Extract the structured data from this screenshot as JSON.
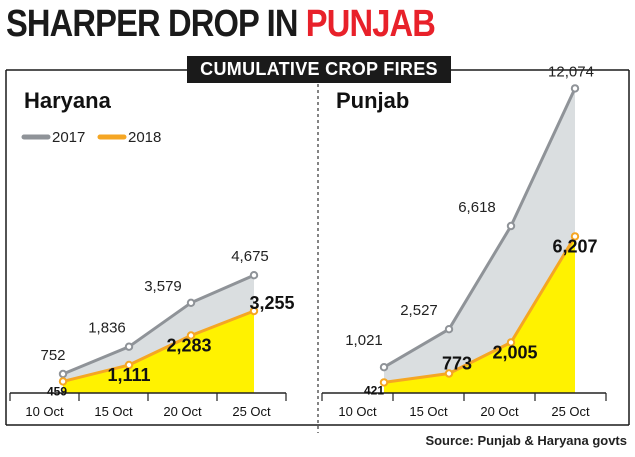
{
  "headline": {
    "prefix": "SHARPER DROP IN ",
    "highlight": "PUNJAB"
  },
  "subtitle": "CUMULATIVE CROP FIRES",
  "source": "Source: Punjab & Haryana govts",
  "colors": {
    "series_2017": "#8f9398",
    "series_2018": "#f5a623",
    "fill_2017": "#dadee0",
    "fill_2018": "#fff200",
    "headline_accent": "#e8212a"
  },
  "chart_data": [
    {
      "type": "area",
      "title": "Haryana",
      "categories": [
        "10 Oct",
        "15 Oct",
        "20 Oct",
        "25 Oct"
      ],
      "series": [
        {
          "name": "2017",
          "values": [
            752,
            1836,
            3579,
            4675
          ],
          "labels": [
            "752",
            "1,836",
            "3,579",
            "4,675"
          ]
        },
        {
          "name": "2018",
          "values": [
            459,
            1111,
            2283,
            3255
          ],
          "labels": [
            "459",
            "1,111",
            "2,283",
            "3,255"
          ]
        }
      ],
      "legend": "top-left",
      "grid": false
    },
    {
      "type": "area",
      "title": "Punjab",
      "categories": [
        "10 Oct",
        "15 Oct",
        "20 Oct",
        "25 Oct"
      ],
      "series": [
        {
          "name": "2017",
          "values": [
            1021,
            2527,
            6618,
            12074
          ],
          "labels": [
            "1,021",
            "2,527",
            "6,618",
            "12,074"
          ]
        },
        {
          "name": "2018",
          "values": [
            421,
            773,
            2005,
            6207
          ],
          "labels": [
            "421",
            "773",
            "2,005",
            "6,207"
          ]
        }
      ],
      "grid": false
    }
  ]
}
